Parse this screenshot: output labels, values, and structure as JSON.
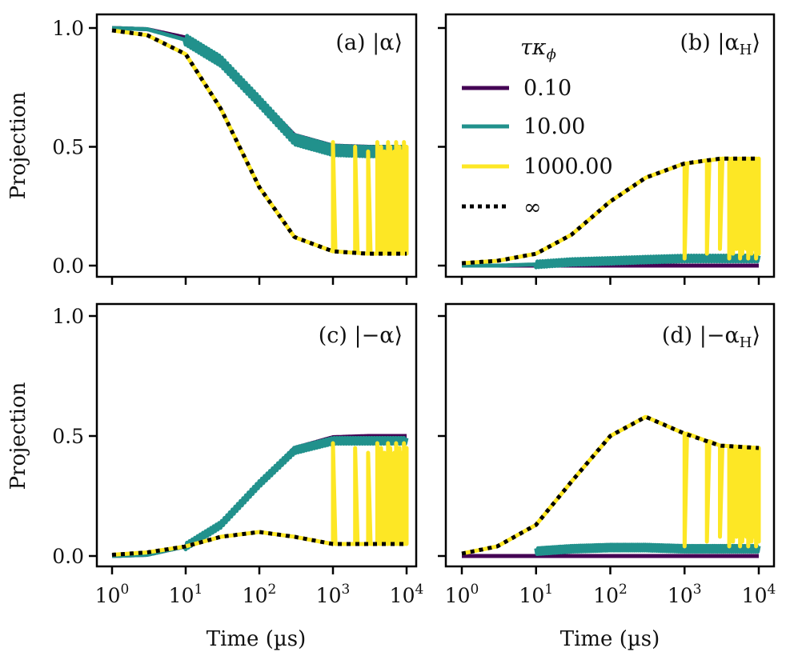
{
  "chart_data": {
    "type": "line",
    "layout": "2x2 grid, shared axes",
    "x_scale": "log",
    "xlim": [
      1,
      10000
    ],
    "ylim": [
      0.0,
      1.0
    ],
    "x_ticks": [
      "1",
      "10",
      "100",
      "1000",
      "10000"
    ],
    "x_tick_labels": [
      {
        "base": "10",
        "exp": "0"
      },
      {
        "base": "10",
        "exp": "1"
      },
      {
        "base": "10",
        "exp": "2"
      },
      {
        "base": "10",
        "exp": "3"
      },
      {
        "base": "10",
        "exp": "4"
      }
    ],
    "y_ticks": [
      "0.0",
      "0.5",
      "1.0"
    ],
    "xlabel": "Time (µs)",
    "ylabel": "Projection",
    "legend": {
      "title": "τκ",
      "title_sub": "ϕ",
      "location": "inside panel (b), top-left",
      "entries": [
        {
          "label": "0.10",
          "color": "#440154",
          "style": "solid"
        },
        {
          "label": "10.00",
          "color": "#21918c",
          "style": "solid"
        },
        {
          "label": "1000.00",
          "color": "#fde725",
          "style": "solid"
        },
        {
          "label": "∞",
          "color": "#000000",
          "style": "dotted"
        }
      ]
    },
    "panels": [
      {
        "id": "a",
        "label": "(a) |α⟩",
        "label_prefix": "(a) ",
        "label_state": "|α⟩",
        "series": [
          {
            "name": "0.10",
            "color": "#440154",
            "x": [
              1,
              3,
              10,
              30,
              100,
              300,
              1000,
              3000,
              10000
            ],
            "y": [
              1.0,
              0.995,
              0.96,
              0.87,
              0.7,
              0.55,
              0.505,
              0.5,
              0.5
            ]
          },
          {
            "name": "10.00",
            "color": "#21918c",
            "x": [
              1,
              3,
              10,
              30,
              100,
              300,
              1000,
              3000,
              10000
            ],
            "y": [
              1.0,
              0.995,
              0.95,
              0.86,
              0.69,
              0.53,
              0.485,
              0.48,
              0.48
            ],
            "noise_from": 10
          },
          {
            "name": "1000.00",
            "color": "#fde725",
            "x": [
              1,
              3,
              10,
              30,
              100,
              300,
              1000,
              3000,
              10000
            ],
            "y": [
              0.99,
              0.97,
              0.89,
              0.66,
              0.33,
              0.12,
              0.06,
              0.05,
              0.05
            ],
            "spikes_from": 1000,
            "spike_top": 0.52
          },
          {
            "name": "∞",
            "color": "#000000",
            "x": [
              1,
              3,
              10,
              30,
              100,
              300,
              1000,
              3000,
              10000
            ],
            "y": [
              0.99,
              0.97,
              0.89,
              0.66,
              0.33,
              0.12,
              0.06,
              0.05,
              0.05
            ],
            "dotted": true
          }
        ]
      },
      {
        "id": "b",
        "label": "(b) |αH⟩",
        "label_prefix": "(b) ",
        "label_state": "|α",
        "label_sub": "H",
        "label_close": "⟩",
        "series": [
          {
            "name": "0.10",
            "color": "#440154",
            "x": [
              1,
              10,
              100,
              1000,
              10000
            ],
            "y": [
              0.0,
              0.0,
              0.0,
              0.0,
              0.0
            ]
          },
          {
            "name": "10.00",
            "color": "#21918c",
            "x": [
              1,
              3,
              10,
              30,
              100,
              300,
              1000,
              3000,
              10000
            ],
            "y": [
              0.0,
              0.0,
              0.005,
              0.015,
              0.02,
              0.025,
              0.03,
              0.03,
              0.03
            ],
            "noise_from": 10
          },
          {
            "name": "1000.00",
            "color": "#fde725",
            "x": [
              1,
              3,
              10,
              30,
              100,
              300,
              1000,
              3000,
              10000
            ],
            "y": [
              0.01,
              0.02,
              0.05,
              0.13,
              0.27,
              0.37,
              0.43,
              0.45,
              0.45
            ],
            "spikes_from": 1000,
            "spike_bottom": 0.03
          },
          {
            "name": "∞",
            "color": "#000000",
            "x": [
              1,
              3,
              10,
              30,
              100,
              300,
              1000,
              3000,
              10000
            ],
            "y": [
              0.01,
              0.02,
              0.05,
              0.13,
              0.27,
              0.37,
              0.43,
              0.45,
              0.45
            ],
            "dotted": true
          }
        ]
      },
      {
        "id": "c",
        "label": "(c) |−α⟩",
        "label_prefix": "(c) ",
        "label_state": "|−α⟩",
        "series": [
          {
            "name": "0.10",
            "color": "#440154",
            "x": [
              1,
              3,
              10,
              30,
              100,
              300,
              1000,
              3000,
              10000
            ],
            "y": [
              0.0,
              0.005,
              0.04,
              0.13,
              0.3,
              0.45,
              0.495,
              0.5,
              0.5
            ]
          },
          {
            "name": "10.00",
            "color": "#21918c",
            "x": [
              1,
              3,
              10,
              30,
              100,
              300,
              1000,
              3000,
              10000
            ],
            "y": [
              0.0,
              0.005,
              0.04,
              0.13,
              0.3,
              0.44,
              0.48,
              0.48,
              0.48
            ],
            "noise_from": 10
          },
          {
            "name": "1000.00",
            "color": "#fde725",
            "x": [
              1,
              3,
              10,
              30,
              100,
              300,
              1000,
              3000,
              10000
            ],
            "y": [
              0.005,
              0.015,
              0.04,
              0.08,
              0.1,
              0.08,
              0.05,
              0.05,
              0.05
            ],
            "spikes_from": 1000,
            "spike_top": 0.47
          },
          {
            "name": "∞",
            "color": "#000000",
            "x": [
              1,
              3,
              10,
              30,
              100,
              300,
              1000,
              3000,
              10000
            ],
            "y": [
              0.005,
              0.015,
              0.04,
              0.08,
              0.1,
              0.08,
              0.05,
              0.05,
              0.05
            ],
            "dotted": true
          }
        ]
      },
      {
        "id": "d",
        "label": "(d) |−αH⟩",
        "label_prefix": "(d) ",
        "label_state": "|−α",
        "label_sub": "H",
        "label_close": "⟩",
        "series": [
          {
            "name": "0.10",
            "color": "#440154",
            "x": [
              1,
              10,
              100,
              1000,
              10000
            ],
            "y": [
              0.0,
              0.0,
              0.0,
              0.0,
              0.0
            ]
          },
          {
            "name": "10.00",
            "color": "#21918c",
            "x": [
              10,
              30,
              100,
              300,
              1000,
              3000,
              10000
            ],
            "y": [
              0.02,
              0.03,
              0.035,
              0.035,
              0.03,
              0.03,
              0.03
            ],
            "noise_from": 10
          },
          {
            "name": "1000.00",
            "color": "#fde725",
            "x": [
              1,
              3,
              10,
              30,
              100,
              300,
              1000,
              3000,
              10000
            ],
            "y": [
              0.01,
              0.04,
              0.13,
              0.31,
              0.5,
              0.58,
              0.51,
              0.46,
              0.45
            ],
            "spikes_from": 1000,
            "spike_bottom": 0.04
          },
          {
            "name": "∞",
            "color": "#000000",
            "x": [
              1,
              3,
              10,
              30,
              100,
              300,
              1000,
              3000,
              10000
            ],
            "y": [
              0.01,
              0.04,
              0.13,
              0.31,
              0.5,
              0.58,
              0.51,
              0.46,
              0.45
            ],
            "dotted": true
          }
        ]
      }
    ]
  }
}
